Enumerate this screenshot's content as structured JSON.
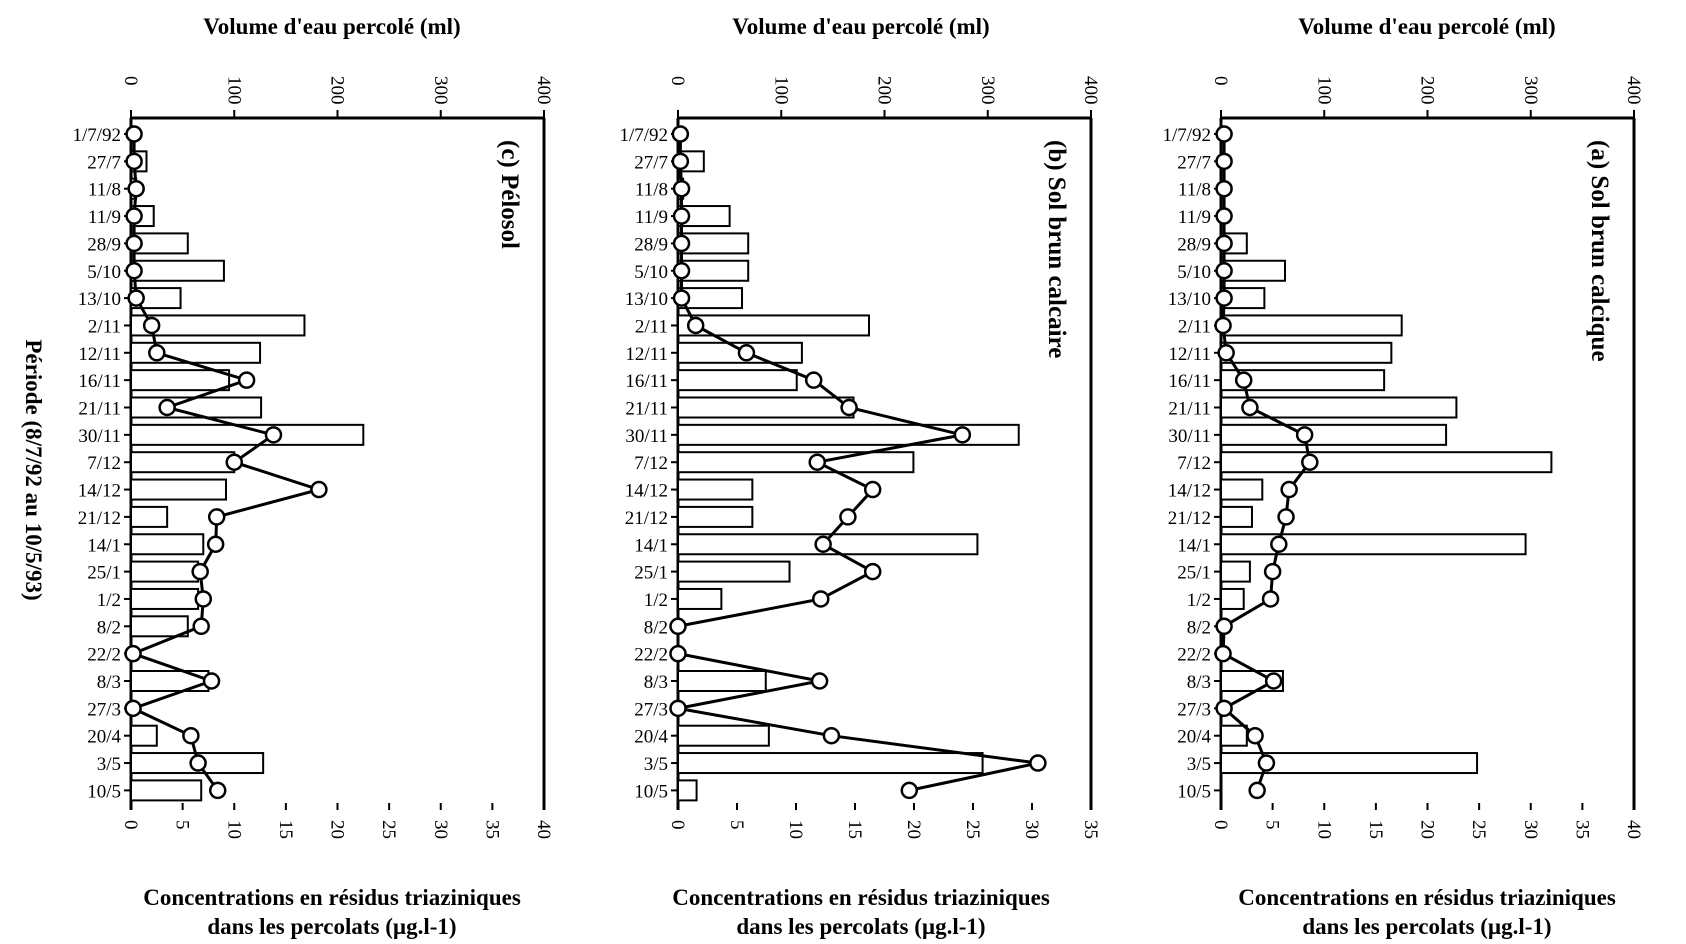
{
  "period_label": "Période (8/7/92 au 10/5/93)",
  "chart_data": [
    {
      "type": "bar",
      "subtitle": "(c) Pélosol",
      "top_axis_label": "Volume d'eau percolé (ml)",
      "bottom_axis_label": [
        "Concentrations en résidus triaziniques",
        "dans les percolats (µg.l-1)"
      ],
      "categories": [
        "1/7/92",
        "27/7",
        "11/8",
        "11/9",
        "28/9",
        "5/10",
        "13/10",
        "2/11",
        "12/11",
        "16/11",
        "21/11",
        "30/11",
        "7/12",
        "14/12",
        "21/12",
        "14/1",
        "25/1",
        "1/2",
        "8/2",
        "22/2",
        "8/3",
        "27/3",
        "20/4",
        "3/5",
        "10/5"
      ],
      "volume_axis": {
        "range": [
          0,
          400
        ],
        "ticks": [
          "0",
          "100",
          "200",
          "300",
          "400"
        ]
      },
      "concentration_axis": {
        "range": [
          0,
          40
        ],
        "ticks": [
          "0",
          "5",
          "10",
          "15",
          "20",
          "25",
          "30",
          "35",
          "40"
        ]
      },
      "series": [
        {
          "name": "Volume d'eau percolé (ml)",
          "kind": "bar",
          "values": [
            0,
            15,
            5,
            22,
            55,
            90,
            48,
            168,
            125,
            95,
            126,
            225,
            100,
            92,
            35,
            70,
            65,
            65,
            55,
            0,
            75,
            0,
            25,
            128,
            68
          ]
        },
        {
          "name": "Concentrations en résidus triaziniques",
          "kind": "line-marker",
          "values": [
            0.3,
            0.3,
            0.5,
            0.3,
            0.3,
            0.3,
            0.5,
            2.0,
            2.5,
            11.2,
            3.5,
            13.8,
            10.0,
            18.2,
            8.3,
            8.2,
            6.7,
            7.0,
            6.8,
            0.2,
            7.8,
            0.2,
            5.8,
            6.5,
            8.4
          ]
        }
      ]
    },
    {
      "type": "bar",
      "subtitle": "(b) Sol brun calcaire",
      "top_axis_label": "Volume d'eau percolé (ml)",
      "bottom_axis_label": [
        "Concentrations en résidus triaziniques",
        "dans les percolats (µg.l-1)"
      ],
      "categories": [
        "1/7/92",
        "27/7",
        "11/8",
        "11/9",
        "28/9",
        "5/10",
        "13/10",
        "2/11",
        "12/11",
        "16/11",
        "21/11",
        "30/11",
        "7/12",
        "14/12",
        "21/12",
        "14/1",
        "25/1",
        "1/2",
        "8/2",
        "22/2",
        "8/3",
        "27/3",
        "20/4",
        "3/5",
        "10/5"
      ],
      "volume_axis": {
        "range": [
          0,
          400
        ],
        "ticks": [
          "0",
          "100",
          "200",
          "300",
          "400"
        ]
      },
      "concentration_axis": {
        "range": [
          0,
          35
        ],
        "ticks": [
          "0",
          "5",
          "10",
          "15",
          "20",
          "25",
          "30",
          "35"
        ]
      },
      "series": [
        {
          "name": "Volume d'eau percolé (ml)",
          "kind": "bar",
          "values": [
            0,
            25,
            5,
            50,
            68,
            68,
            62,
            185,
            120,
            115,
            170,
            330,
            228,
            72,
            72,
            290,
            108,
            42,
            0,
            0,
            85,
            0,
            88,
            295,
            18
          ]
        },
        {
          "name": "Concentrations en résidus triaziniques",
          "kind": "line-marker",
          "values": [
            0.2,
            0.2,
            0.3,
            0.3,
            0.3,
            0.3,
            0.3,
            1.5,
            5.8,
            11.5,
            14.5,
            24.1,
            11.8,
            16.5,
            14.4,
            12.3,
            16.5,
            12.1,
            0,
            0,
            12.0,
            0,
            13.0,
            30.5,
            19.6
          ]
        }
      ]
    },
    {
      "type": "bar",
      "subtitle": "(a) Sol brun calcique",
      "top_axis_label": "Volume d'eau percolé (ml)",
      "bottom_axis_label": [
        "Concentrations en résidus triaziniques",
        "dans les percolats (µg.l-1)"
      ],
      "categories": [
        "1/7/92",
        "27/7",
        "11/8",
        "11/9",
        "28/9",
        "5/10",
        "13/10",
        "2/11",
        "12/11",
        "16/11",
        "21/11",
        "30/11",
        "7/12",
        "14/12",
        "21/12",
        "14/1",
        "25/1",
        "1/2",
        "8/2",
        "22/2",
        "8/3",
        "27/3",
        "20/4",
        "3/5",
        "10/5"
      ],
      "volume_axis": {
        "range": [
          0,
          400
        ],
        "ticks": [
          "0",
          "100",
          "200",
          "300",
          "400"
        ]
      },
      "concentration_axis": {
        "range": [
          0,
          40
        ],
        "ticks": [
          "0",
          "5",
          "10",
          "15",
          "20",
          "25",
          "30",
          "35",
          "40"
        ]
      },
      "series": [
        {
          "name": "Volume d'eau percolé (ml)",
          "kind": "bar",
          "values": [
            0,
            0,
            0,
            0,
            25,
            62,
            42,
            175,
            165,
            158,
            228,
            218,
            320,
            40,
            30,
            295,
            28,
            22,
            0,
            0,
            60,
            0,
            25,
            248,
            0
          ]
        },
        {
          "name": "Concentrations en résidus triaziniques",
          "kind": "line-marker",
          "values": [
            0.3,
            0.3,
            0.3,
            0.3,
            0.3,
            0.3,
            0.3,
            0.2,
            0.5,
            2.2,
            2.8,
            8.1,
            8.6,
            6.6,
            6.3,
            5.6,
            5.0,
            4.8,
            0.3,
            0.2,
            5.1,
            0.3,
            3.3,
            4.4,
            3.5
          ]
        }
      ]
    }
  ]
}
